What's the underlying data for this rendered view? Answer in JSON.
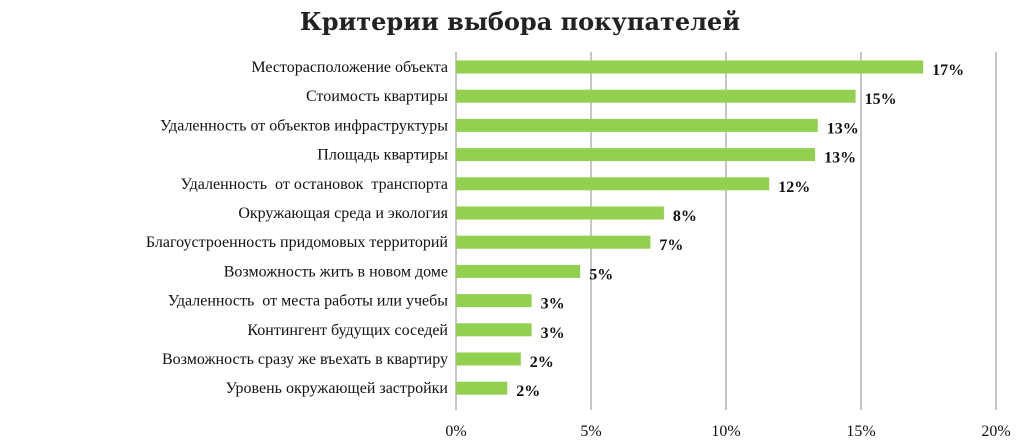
{
  "chart_data": {
    "type": "bar",
    "orientation": "horizontal",
    "title": "Критерии выбора покупателей",
    "xlabel": "",
    "ylabel": "",
    "categories": [
      "Месторасположение объекта",
      "Стоимость квартиры",
      "Удаленность от объектов инфраструктуры",
      "Площадь квартиры",
      "Удаленность  от остановок  транспорта",
      "Окружающая среда и экология",
      "Благоустроенность придомовых территорий",
      "Возможность жить в новом доме",
      "Удаленность  от места работы или учебы",
      "Контингент будущих соседей",
      "Возможность сразу же въехать в квартиру",
      "Уровень окружающей застройки"
    ],
    "values": [
      17.3,
      14.8,
      13.4,
      13.3,
      11.6,
      7.7,
      7.2,
      4.6,
      2.8,
      2.8,
      2.4,
      1.9
    ],
    "value_labels": [
      "17%",
      "15%",
      "13%",
      "13%",
      "12%",
      "8%",
      "7%",
      "5%",
      "3%",
      "3%",
      "2%",
      "2%"
    ],
    "xlim": [
      0,
      20
    ],
    "xticks": [
      0,
      5,
      10,
      15,
      20
    ],
    "xtick_labels": [
      "0%",
      "5%",
      "10%",
      "15%",
      "20%"
    ],
    "grid": "vertical",
    "legend": "none",
    "bar_color": "#92d050",
    "grid_color": "#8c8c8c"
  }
}
